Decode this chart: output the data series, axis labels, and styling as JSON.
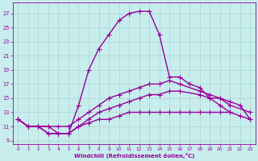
{
  "xlabel": "Windchill (Refroidissement éolien,°C)",
  "xlim": [
    -0.5,
    23.5
  ],
  "ylim": [
    8.5,
    28.5
  ],
  "xticks": [
    0,
    1,
    2,
    3,
    4,
    5,
    6,
    7,
    8,
    9,
    10,
    11,
    12,
    13,
    14,
    15,
    16,
    17,
    18,
    19,
    20,
    21,
    22,
    23
  ],
  "yticks": [
    9,
    11,
    13,
    15,
    17,
    19,
    21,
    23,
    25,
    27
  ],
  "bg_color": "#c8eded",
  "grid_color": "#aad4d4",
  "line_color": "#990099",
  "line1_x": [
    0,
    1,
    2,
    3,
    4,
    5,
    6,
    7,
    8,
    9,
    10,
    11,
    12,
    13,
    14,
    15,
    16,
    17,
    18,
    19,
    20,
    21
  ],
  "line1_y": [
    12,
    11,
    11,
    10,
    10,
    10,
    14,
    19,
    22,
    24,
    26,
    27,
    27.3,
    27.3,
    24,
    18,
    18,
    17,
    16.5,
    15,
    14,
    13
  ],
  "line2_x": [
    0,
    1,
    2,
    3,
    4,
    5,
    6,
    7,
    8,
    9,
    10,
    11,
    12,
    13,
    14,
    15,
    16,
    18,
    19,
    20,
    21,
    23
  ],
  "line2_y": [
    12,
    11,
    11,
    11,
    11,
    11,
    12,
    13,
    14,
    15,
    15.5,
    16,
    16.5,
    17,
    17,
    17.5,
    17,
    16,
    15.5,
    15,
    14,
    13
  ],
  "line3_x": [
    0,
    1,
    2,
    3,
    4,
    5,
    6,
    7,
    8,
    9,
    10,
    11,
    12,
    13,
    14,
    15,
    16,
    18,
    19,
    20,
    21,
    22,
    23
  ],
  "line3_y": [
    12,
    11,
    11,
    11,
    10,
    10,
    11,
    12,
    13,
    13.5,
    14,
    14.5,
    15,
    15.5,
    15.5,
    16,
    16,
    15.5,
    15,
    15,
    14.5,
    14,
    12
  ],
  "line4_x": [
    0,
    1,
    2,
    3,
    4,
    5,
    6,
    7,
    8,
    9,
    10,
    11,
    12,
    13,
    14,
    15,
    16,
    17,
    18,
    19,
    20,
    21,
    22,
    23
  ],
  "line4_y": [
    12,
    11,
    11,
    10,
    10,
    10,
    11,
    11.5,
    12,
    12,
    12.5,
    13,
    13,
    13,
    13,
    13,
    13,
    13,
    13,
    13,
    13,
    13,
    12.5,
    12
  ],
  "marker": "+",
  "markersize": 4,
  "linewidth": 1.0
}
